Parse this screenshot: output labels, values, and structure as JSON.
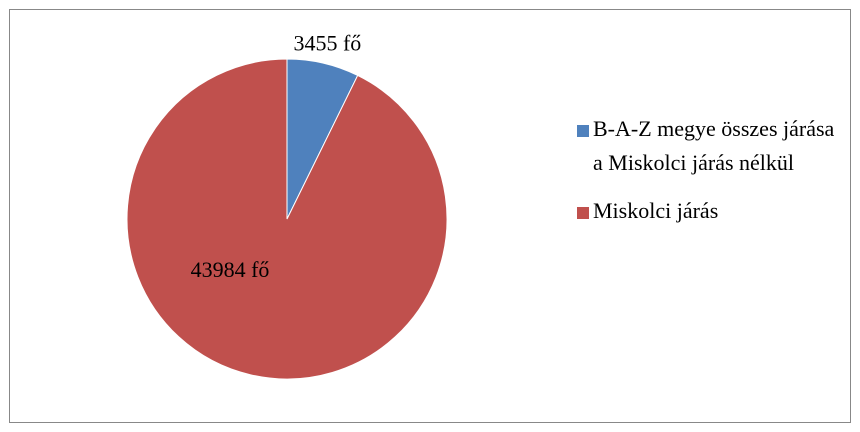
{
  "chart_data": {
    "type": "pie",
    "categories": [
      "B-A-Z megye összes járása a Miskolci járás nélkül",
      "Miskolci járás"
    ],
    "values": [
      3455,
      43984
    ],
    "value_labels": [
      "3455 fő",
      "43984 fő"
    ],
    "colors": [
      "#4f81bd",
      "#c0504d"
    ],
    "legend": "right"
  }
}
